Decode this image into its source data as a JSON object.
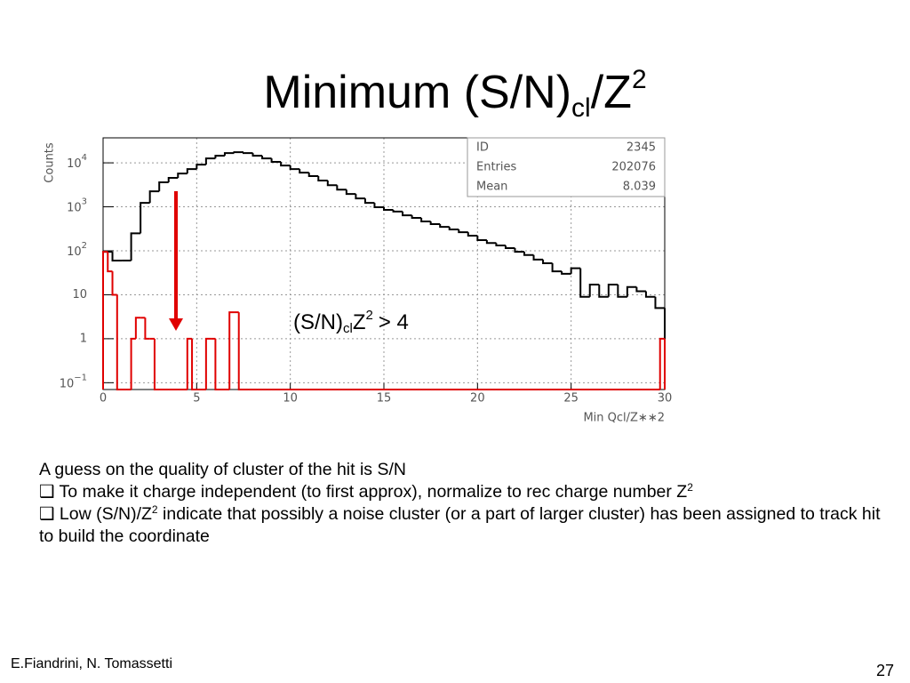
{
  "title": {
    "main": "Minimum (S/N)",
    "sub": "cl",
    "mid": "/Z",
    "sup": "2"
  },
  "chart_data": {
    "type": "histogram",
    "y_label": "Counts",
    "x_label": "Min Qcl/Z∗∗2",
    "xlim": [
      0,
      30
    ],
    "xticks": [
      0,
      5,
      10,
      15,
      20,
      25,
      30
    ],
    "ylim": [
      0.07,
      37000
    ],
    "log_y": true,
    "grid": true,
    "yticks": [
      {
        "value": 0.1,
        "label": "10",
        "exponent": "−1"
      },
      1,
      10,
      {
        "value": 100,
        "label": "10",
        "exponent": "2"
      },
      {
        "value": 1000,
        "label": "10",
        "exponent": "3"
      },
      {
        "value": 10000,
        "label": "10",
        "exponent": "4"
      }
    ],
    "series": [
      {
        "color": "#000000",
        "bins": [
          0,
          0.5,
          1,
          1.5,
          2,
          2.5,
          3,
          3.5,
          4,
          4.5,
          5,
          5.5,
          6,
          6.5,
          7,
          7.5,
          8,
          8.5,
          9,
          9.5,
          10,
          10.5,
          11,
          11.5,
          12,
          12.5,
          13,
          13.5,
          14,
          14.5,
          15,
          15.5,
          16,
          16.5,
          17,
          17.5,
          18,
          18.5,
          19,
          19.5,
          20,
          20.5,
          21,
          21.5,
          22,
          22.5,
          23,
          23.5,
          24,
          24.5,
          25,
          25.5,
          26,
          26.5,
          27,
          27.5,
          28,
          28.5,
          29,
          29.5,
          30
        ],
        "values": [
          95,
          60,
          60,
          250,
          1230,
          2250,
          3600,
          4550,
          5700,
          7200,
          9100,
          12600,
          14500,
          16700,
          17500,
          16700,
          14500,
          12600,
          10500,
          8700,
          7200,
          6000,
          5000,
          3950,
          3100,
          2450,
          1960,
          1550,
          1230,
          980,
          850,
          780,
          640,
          560,
          465,
          405,
          350,
          305,
          265,
          220,
          175,
          150,
          132,
          115,
          95,
          80,
          63,
          52,
          34,
          30,
          40,
          9,
          17,
          9,
          17,
          9,
          15,
          12,
          9,
          5
        ]
      },
      {
        "color": "#e00000",
        "bins": [
          0,
          0.25,
          0.5,
          0.75,
          1,
          1.25,
          1.5,
          1.75,
          2,
          2.25,
          2.5,
          2.75,
          3,
          3.25,
          3.5,
          3.75,
          4,
          4.25,
          4.5,
          4.75,
          5,
          5.25,
          5.5,
          5.75,
          6,
          6.25,
          6.5,
          6.75,
          7,
          7.25,
          7.5,
          7.75,
          8,
          8.25,
          8.5,
          8.75,
          9,
          9.25,
          9.5,
          9.75,
          10,
          10.25,
          10.5,
          10.75,
          11,
          11.25,
          11.5,
          11.75,
          12,
          12.25,
          12.5,
          12.75,
          13,
          13.25,
          13.5,
          13.75,
          14,
          14.25,
          14.5,
          14.75,
          15,
          15.25,
          15.5,
          15.75,
          16,
          16.25,
          16.5,
          16.75,
          17,
          17.25,
          17.5,
          17.75,
          18,
          18.25,
          18.5,
          18.75,
          19,
          19.25,
          19.5,
          19.75,
          20,
          20.25,
          20.5,
          20.75,
          21,
          21.25,
          21.5,
          21.75,
          22,
          22.25,
          22.5,
          22.75,
          23,
          23.25,
          23.5,
          23.75,
          24,
          24.25,
          24.5,
          24.75,
          25,
          25.25,
          25.5,
          25.75,
          26,
          26.25,
          26.5,
          26.75,
          27,
          27.25,
          27.5,
          27.75,
          28,
          28.25,
          28.5,
          28.75,
          29,
          29.25,
          29.5,
          29.75,
          30
        ],
        "values": [
          95,
          34,
          10,
          0,
          0,
          0,
          1,
          3,
          3,
          1,
          1,
          0,
          0,
          0,
          0,
          0,
          0,
          0,
          1,
          0,
          0,
          0,
          1,
          1,
          0,
          0,
          0,
          4,
          4,
          0,
          0,
          0,
          0,
          0,
          0,
          0,
          0,
          0,
          0,
          0,
          0,
          0,
          0,
          0,
          0,
          0,
          0,
          0,
          0,
          0,
          0,
          0,
          0,
          0,
          0,
          0,
          0,
          0,
          0,
          0,
          0,
          0,
          0,
          0,
          0,
          0,
          0,
          0,
          0,
          0,
          0,
          0,
          0,
          0,
          0,
          0,
          0,
          0,
          0,
          0,
          0,
          0,
          0,
          0,
          0,
          0,
          0,
          0,
          0,
          0,
          0,
          0,
          0,
          0,
          0,
          0,
          0,
          0,
          0,
          0,
          0,
          0,
          0,
          0,
          0,
          0,
          0,
          0,
          0,
          0,
          0,
          0,
          0,
          0,
          0,
          0,
          0,
          0,
          0,
          1
        ]
      }
    ],
    "stats": [
      {
        "name": "ID",
        "value": "2345"
      },
      {
        "name": "Entries",
        "value": "202076"
      },
      {
        "name": "Mean",
        "value": "8.039"
      }
    ],
    "annotation": {
      "text": "(S/N)",
      "sub": "cl",
      "mid": "Z",
      "sup": "2",
      "tail": "> 4"
    }
  },
  "body": {
    "intro": "A guess on the quality of cluster of the hit is S/N",
    "bullets": [
      {
        "text": "To make it charge independent (to first approx), normalize to rec charge number Z",
        "sup": "2"
      },
      {
        "text": "Low (S/N)/Z",
        "sup": "2",
        "rest": "indicate that possibly a noise cluster (or a part of larger cluster) has been assigned to track hit to build the coordinate"
      }
    ]
  },
  "footer": {
    "authors": "E.Fiandrini, N. Tomassetti",
    "page": "27"
  }
}
